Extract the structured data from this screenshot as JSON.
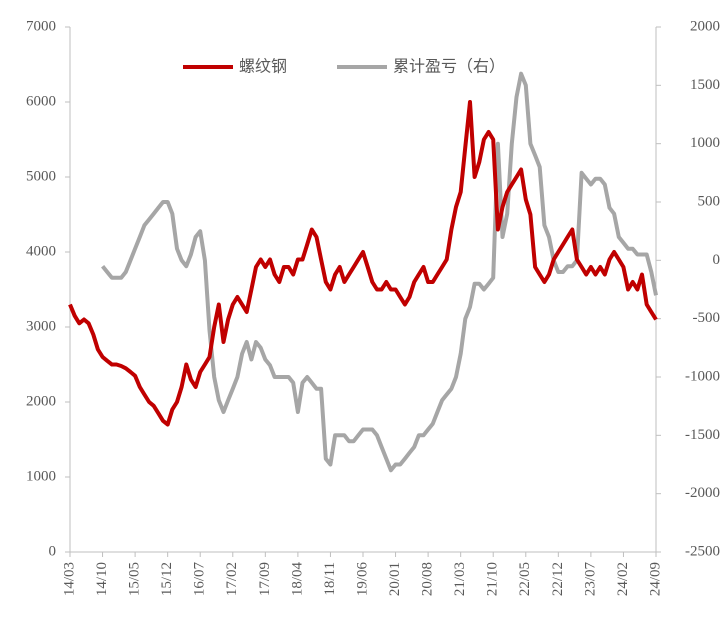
{
  "chart_data": {
    "type": "line",
    "categories": [
      "14/03",
      null,
      null,
      null,
      null,
      null,
      null,
      "14/10",
      null,
      null,
      null,
      null,
      null,
      null,
      "15/05",
      null,
      null,
      null,
      null,
      null,
      null,
      "15/12",
      null,
      null,
      null,
      null,
      null,
      null,
      "16/07",
      null,
      null,
      null,
      null,
      null,
      null,
      "17/02",
      null,
      null,
      null,
      null,
      null,
      null,
      "17/09",
      null,
      null,
      null,
      null,
      null,
      null,
      "18/04",
      null,
      null,
      null,
      null,
      null,
      null,
      "18/11",
      null,
      null,
      null,
      null,
      null,
      null,
      "19/06",
      null,
      null,
      null,
      null,
      null,
      null,
      "20/01",
      null,
      null,
      null,
      null,
      null,
      null,
      "20/08",
      null,
      null,
      null,
      null,
      null,
      null,
      "21/03",
      null,
      null,
      null,
      null,
      null,
      null,
      "21/10",
      null,
      null,
      null,
      null,
      null,
      null,
      "22/05",
      null,
      null,
      null,
      null,
      null,
      null,
      "22/12",
      null,
      null,
      null,
      null,
      null,
      null,
      "23/07",
      null,
      null,
      null,
      null,
      null,
      null,
      "24/02",
      null,
      null,
      null,
      null,
      null,
      null,
      "24/09"
    ],
    "series": [
      {
        "name": "螺纹钢",
        "color": "#c00000",
        "values": [
          3300,
          3150,
          3050,
          3100,
          3050,
          2900,
          2700,
          2600,
          2550,
          2500,
          2500,
          2480,
          2450,
          2400,
          2350,
          2200,
          2100,
          2000,
          1950,
          1850,
          1750,
          1700,
          1900,
          2000,
          2200,
          2500,
          2300,
          2200,
          2400,
          2500,
          2600,
          3000,
          3300,
          2800,
          3100,
          3300,
          3400,
          3300,
          3200,
          3500,
          3800,
          3900,
          3800,
          3900,
          3700,
          3600,
          3800,
          3800,
          3700,
          3900,
          3900,
          4100,
          4300,
          4200,
          3900,
          3600,
          3500,
          3700,
          3800,
          3600,
          3700,
          3800,
          3900,
          4000,
          3800,
          3600,
          3500,
          3500,
          3600,
          3500,
          3500,
          3400,
          3300,
          3400,
          3600,
          3700,
          3800,
          3600,
          3600,
          3700,
          3800,
          3900,
          4300,
          4600,
          4800,
          5400,
          6000,
          5000,
          5200,
          5500,
          5600,
          5500,
          4300,
          4600,
          4800,
          4900,
          5000,
          5100,
          4700,
          4500,
          3800,
          3700,
          3600,
          3700,
          3900,
          4000,
          4100,
          4200,
          4300,
          3900,
          3800,
          3700,
          3800,
          3700,
          3800,
          3700,
          3900,
          4000,
          3900,
          3800,
          3500,
          3600,
          3500,
          3700,
          3300,
          3200,
          3100
        ]
      },
      {
        "name": "累计盈亏（右）",
        "color": "#a6a6a6",
        "axis": "y2",
        "values": [
          null,
          null,
          null,
          null,
          null,
          null,
          null,
          -50,
          -100,
          -150,
          -150,
          -150,
          -100,
          0,
          100,
          200,
          300,
          350,
          400,
          450,
          500,
          500,
          400,
          100,
          0,
          -50,
          50,
          200,
          250,
          0,
          -600,
          -1000,
          -1200,
          -1300,
          -1200,
          -1100,
          -1000,
          -800,
          -700,
          -850,
          -700,
          -750,
          -850,
          -900,
          -1000,
          -1000,
          -1000,
          -1000,
          -1050,
          -1300,
          -1050,
          -1000,
          -1050,
          -1100,
          -1100,
          -1700,
          -1750,
          -1500,
          -1500,
          -1500,
          -1550,
          -1550,
          -1500,
          -1450,
          -1450,
          -1450,
          -1500,
          -1600,
          -1700,
          -1800,
          -1750,
          -1750,
          -1700,
          -1650,
          -1600,
          -1500,
          -1500,
          -1450,
          -1400,
          -1300,
          -1200,
          -1150,
          -1100,
          -1000,
          -800,
          -500,
          -400,
          -200,
          -200,
          -250,
          -200,
          -150,
          1000,
          200,
          400,
          1000,
          1400,
          1600,
          1500,
          1000,
          900,
          800,
          300,
          200,
          0,
          -100,
          -100,
          -50,
          -50,
          0,
          750,
          700,
          650,
          700,
          700,
          650,
          450,
          400,
          200,
          150,
          100,
          100,
          50,
          50,
          50,
          -100,
          -300
        ]
      }
    ],
    "ylim": [
      0,
      7000
    ],
    "yticks": [
      0,
      1000,
      2000,
      3000,
      4000,
      5000,
      6000,
      7000
    ],
    "y2lim": [
      -2500,
      2000
    ],
    "y2ticks": [
      -2500,
      -2000,
      -1500,
      -1000,
      -500,
      0,
      500,
      1000,
      1500,
      2000
    ],
    "legend": "top",
    "grid": false
  }
}
